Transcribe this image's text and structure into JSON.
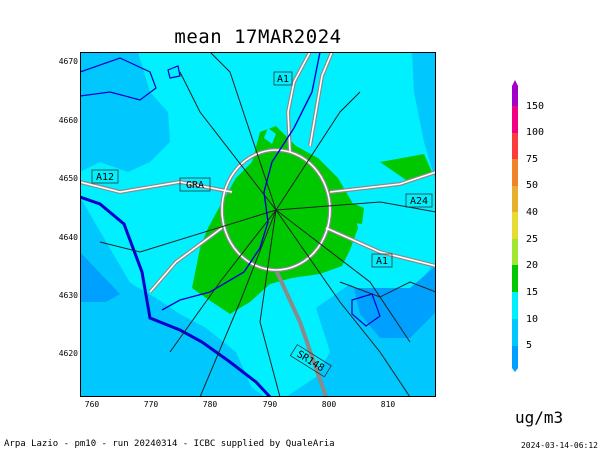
{
  "title": "mean 17MAR2024",
  "axes": {
    "x_ticks": [
      "760",
      "770",
      "780",
      "790",
      "800",
      "810"
    ],
    "y_ticks": [
      "4670",
      "4660",
      "4650",
      "4640",
      "4630",
      "4620"
    ],
    "x_range": [
      758,
      818
    ],
    "y_range": [
      4613,
      4672
    ]
  },
  "road_labels": {
    "a1_north": "A1",
    "a12": "A12",
    "gra": "GRA",
    "a24": "A24",
    "a1_south": "A1",
    "sr148": "SR148"
  },
  "legend": {
    "levels": [
      "5",
      "10",
      "15",
      "20",
      "25",
      "40",
      "50",
      "75",
      "100",
      "150"
    ],
    "colors": [
      "#00a0ff",
      "#00c8ff",
      "#00f0ff",
      "#00c800",
      "#a0e632",
      "#e6dc32",
      "#e6af2d",
      "#f08228",
      "#fa3c3c",
      "#f00082",
      "#a000c8"
    ]
  },
  "unit": "ug/m3",
  "footer": "Arpa Lazio - pm10 - run 20240314 - ICBC supplied by QualeAria",
  "timestamp": "2024-03-14-06:12"
}
